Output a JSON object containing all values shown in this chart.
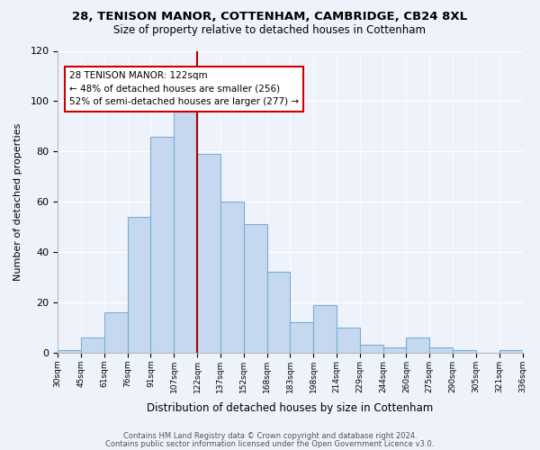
{
  "title1": "28, TENISON MANOR, COTTENHAM, CAMBRIDGE, CB24 8XL",
  "title2": "Size of property relative to detached houses in Cottenham",
  "xlabel": "Distribution of detached houses by size in Cottenham",
  "ylabel": "Number of detached properties",
  "tick_labels": [
    "30sqm",
    "45sqm",
    "61sqm",
    "76sqm",
    "91sqm",
    "107sqm",
    "122sqm",
    "137sqm",
    "152sqm",
    "168sqm",
    "183sqm",
    "198sqm",
    "214sqm",
    "229sqm",
    "244sqm",
    "260sqm",
    "275sqm",
    "290sqm",
    "305sqm",
    "321sqm",
    "336sqm"
  ],
  "bar_heights": [
    1,
    6,
    16,
    54,
    86,
    97,
    79,
    60,
    51,
    32,
    12,
    19,
    10,
    3,
    2,
    6,
    2,
    1,
    0,
    1
  ],
  "bar_color": "#c5d8ef",
  "bar_edge_color": "#7bafd4",
  "highlight_line_index": 6,
  "highlight_color": "#aa0000",
  "annotation_line1": "28 TENISON MANOR: 122sqm",
  "annotation_line2": "← 48% of detached houses are smaller (256)",
  "annotation_line3": "52% of semi-detached houses are larger (277) →",
  "annotation_box_color": "#ffffff",
  "annotation_box_edge": "#cc0000",
  "ylim": [
    0,
    120
  ],
  "yticks": [
    0,
    20,
    40,
    60,
    80,
    100,
    120
  ],
  "footer1": "Contains HM Land Registry data © Crown copyright and database right 2024.",
  "footer2": "Contains public sector information licensed under the Open Government Licence v3.0.",
  "bg_color": "#eef2fa"
}
